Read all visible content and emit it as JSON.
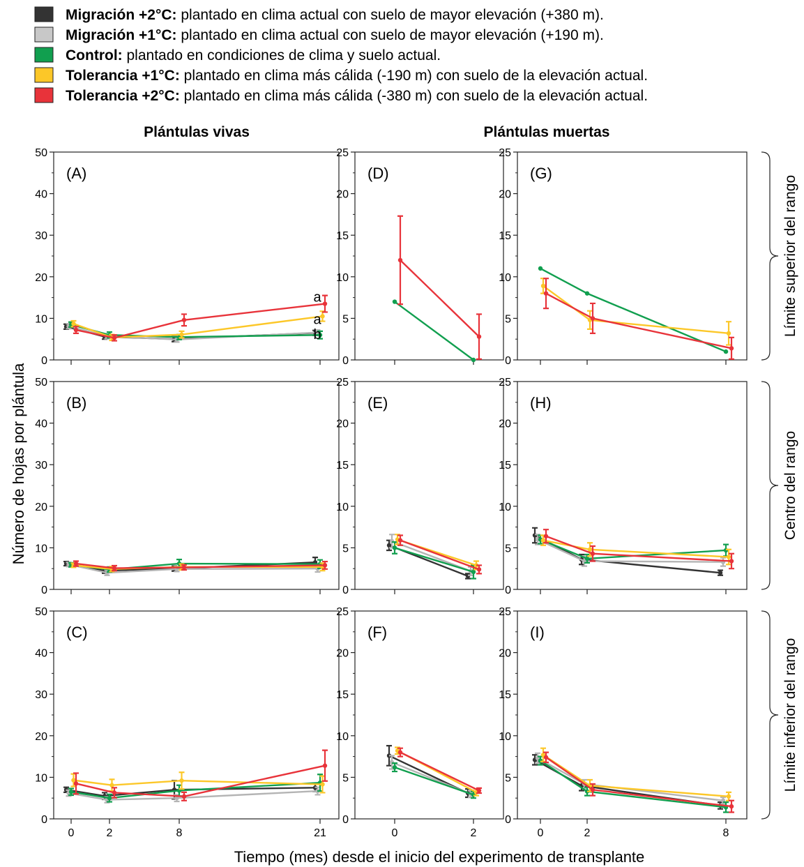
{
  "legend": {
    "items": [
      {
        "color": "#333333",
        "bold": "Migración +2°C:",
        "rest": " plantado en clima actual con suelo de mayor elevación (+380 m)."
      },
      {
        "color": "#c8c8c8",
        "bold": "Migración +1°C:",
        "rest": " plantado en clima actual con suelo de mayor elevación (+190 m)."
      },
      {
        "color": "#119f4f",
        "bold": "Control:",
        "rest": " plantado en condiciones de clima y suelo actual."
      },
      {
        "color": "#fcc728",
        "bold": "Tolerancia +1°C:",
        "rest": " plantado en clima más cálida (-190 m) con suelo de la elevación actual."
      },
      {
        "color": "#e8333a",
        "bold": "Tolerancia +2°C:",
        "rest": " plantado en clima más cálida (-380 m) con suelo de la elevación actual."
      }
    ]
  },
  "headers": {
    "live": "Plántulas vivas",
    "dead": "Plántulas muertas"
  },
  "ylabel": "Número  de  hojas  por  plántula",
  "xlabel": "Tiempo (mes) desde el inicio del experimento de transplante",
  "rows": [
    {
      "label": "Límite superior del rango"
    },
    {
      "label": "Centro del rango"
    },
    {
      "label": "Límite inferior del rango"
    }
  ],
  "series_colors": {
    "m2": "#333333",
    "m1": "#b4b4b4",
    "c": "#119f4f",
    "t1": "#fcc728",
    "t2": "#e8333a"
  },
  "chart_data": [
    {
      "panel": "(A)",
      "type": "line",
      "ymax": 50,
      "ystep": 10,
      "xticks": [
        0,
        2,
        8,
        21
      ],
      "annotations": [
        {
          "text": "a",
          "x": 21,
          "y": 15.2
        },
        {
          "text": "a",
          "x": 21,
          "y": 9.8
        },
        {
          "text": "b",
          "x": 21,
          "y": 6.2
        }
      ],
      "series": [
        {
          "key": "m2",
          "points": [
            [
              0,
              8.0,
              0.6
            ],
            [
              2,
              5.6,
              0.6
            ],
            [
              8,
              5.0,
              0.6
            ],
            [
              21,
              6.5,
              0.6
            ]
          ]
        },
        {
          "key": "m1",
          "points": [
            [
              0,
              8.1,
              0.6
            ],
            [
              2,
              5.7,
              0.6
            ],
            [
              8,
              4.9,
              0.6
            ],
            [
              21,
              6.6,
              0.6
            ]
          ]
        },
        {
          "key": "c",
          "points": [
            [
              0,
              8.5,
              0.6
            ],
            [
              2,
              6.0,
              0.7
            ],
            [
              8,
              5.5,
              0.6
            ],
            [
              21,
              6.0,
              0.9
            ]
          ]
        },
        {
          "key": "t1",
          "points": [
            [
              0,
              8.7,
              0.7
            ],
            [
              2,
              5.4,
              0.7
            ],
            [
              8,
              6.1,
              0.8
            ],
            [
              21,
              10.5,
              1.2
            ]
          ]
        },
        {
          "key": "t2",
          "points": [
            [
              0,
              7.2,
              0.8
            ],
            [
              2,
              5.3,
              0.7
            ],
            [
              8,
              9.6,
              1.4
            ],
            [
              21,
              13.5,
              2.0
            ]
          ]
        }
      ]
    },
    {
      "panel": "(D)",
      "type": "line",
      "ymax": 25,
      "ystep": 5,
      "xticks": [
        0,
        2
      ],
      "series": [
        {
          "key": "c",
          "points": [
            [
              0,
              7.0,
              0
            ],
            [
              2,
              0,
              0
            ]
          ]
        },
        {
          "key": "t2",
          "points": [
            [
              0,
              12.0,
              5.3
            ],
            [
              2,
              2.8,
              2.7
            ]
          ]
        }
      ]
    },
    {
      "panel": "(G)",
      "type": "line",
      "ymax": 25,
      "ystep": 5,
      "xticks": [
        0,
        2,
        8
      ],
      "series": [
        {
          "key": "c",
          "points": [
            [
              0,
              11.0,
              0
            ],
            [
              2,
              8.0,
              0
            ],
            [
              8,
              1.0,
              0
            ]
          ]
        },
        {
          "key": "t1",
          "points": [
            [
              0,
              8.9,
              0.9
            ],
            [
              2,
              4.8,
              1.1
            ],
            [
              8,
              3.2,
              1.4
            ]
          ]
        },
        {
          "key": "t2",
          "points": [
            [
              0,
              8.0,
              1.8
            ],
            [
              2,
              5.0,
              1.8
            ],
            [
              8,
              1.4,
              1.3
            ]
          ]
        }
      ]
    },
    {
      "panel": "(B)",
      "type": "line",
      "ymax": 50,
      "ystep": 10,
      "xticks": [
        0,
        2,
        8,
        21
      ],
      "series": [
        {
          "key": "m2",
          "points": [
            [
              0,
              6.2,
              0.5
            ],
            [
              2,
              4.5,
              0.6
            ],
            [
              8,
              5.0,
              0.6
            ],
            [
              21,
              6.5,
              1.2
            ]
          ]
        },
        {
          "key": "m1",
          "points": [
            [
              0,
              6.0,
              0.5
            ],
            [
              2,
              4.0,
              0.6
            ],
            [
              8,
              4.9,
              0.6
            ],
            [
              21,
              5.0,
              0.8
            ]
          ]
        },
        {
          "key": "c",
          "points": [
            [
              0,
              5.9,
              0.5
            ],
            [
              2,
              4.8,
              0.6
            ],
            [
              8,
              6.2,
              1.0
            ],
            [
              21,
              6.1,
              1.0
            ]
          ]
        },
        {
          "key": "t1",
          "points": [
            [
              0,
              5.8,
              0.5
            ],
            [
              2,
              4.9,
              0.6
            ],
            [
              8,
              5.4,
              0.7
            ],
            [
              21,
              5.4,
              0.9
            ]
          ]
        },
        {
          "key": "t2",
          "points": [
            [
              0,
              6.2,
              0.6
            ],
            [
              2,
              5.1,
              0.6
            ],
            [
              8,
              5.3,
              0.6
            ],
            [
              21,
              5.8,
              0.9
            ]
          ]
        }
      ]
    },
    {
      "panel": "(E)",
      "type": "line",
      "ymax": 25,
      "ystep": 5,
      "xticks": [
        0,
        2
      ],
      "series": [
        {
          "key": "m2",
          "points": [
            [
              0,
              5.3,
              0.6
            ],
            [
              2,
              1.6,
              0.3
            ]
          ]
        },
        {
          "key": "m1",
          "points": [
            [
              0,
              5.8,
              0.8
            ],
            [
              2,
              2.2,
              0.5
            ]
          ]
        },
        {
          "key": "c",
          "points": [
            [
              0,
              5.0,
              0.7
            ],
            [
              2,
              2.1,
              0.8
            ]
          ]
        },
        {
          "key": "t1",
          "points": [
            [
              0,
              6.0,
              0.6
            ],
            [
              2,
              2.9,
              0.5
            ]
          ]
        },
        {
          "key": "t2",
          "points": [
            [
              0,
              5.9,
              0.6
            ],
            [
              2,
              2.4,
              0.5
            ]
          ]
        }
      ]
    },
    {
      "panel": "(H)",
      "type": "line",
      "ymax": 25,
      "ystep": 5,
      "xticks": [
        0,
        2,
        8
      ],
      "series": [
        {
          "key": "m2",
          "points": [
            [
              0,
              6.5,
              0.9
            ],
            [
              2,
              3.6,
              0.6
            ],
            [
              8,
              2.0,
              0.3
            ]
          ]
        },
        {
          "key": "m1",
          "points": [
            [
              0,
              6.0,
              0.6
            ],
            [
              2,
              3.4,
              0.6
            ],
            [
              8,
              3.3,
              0.5
            ]
          ]
        },
        {
          "key": "c",
          "points": [
            [
              0,
              6.0,
              0.5
            ],
            [
              2,
              3.7,
              0.5
            ],
            [
              8,
              4.7,
              0.7
            ]
          ]
        },
        {
          "key": "t1",
          "points": [
            [
              0,
              5.9,
              0.6
            ],
            [
              2,
              4.8,
              0.8
            ],
            [
              8,
              3.9,
              0.9
            ]
          ]
        },
        {
          "key": "t2",
          "points": [
            [
              0,
              6.4,
              0.8
            ],
            [
              2,
              4.3,
              0.9
            ],
            [
              8,
              3.4,
              0.9
            ]
          ]
        }
      ]
    },
    {
      "panel": "(C)",
      "type": "line",
      "ymax": 50,
      "ystep": 10,
      "xticks": [
        0,
        2,
        8,
        21
      ],
      "series": [
        {
          "key": "m2",
          "points": [
            [
              0,
              7.0,
              0.6
            ],
            [
              2,
              5.5,
              0.8
            ],
            [
              8,
              7.0,
              2.2
            ],
            [
              21,
              7.5,
              0.9
            ]
          ]
        },
        {
          "key": "m1",
          "points": [
            [
              0,
              6.2,
              0.7
            ],
            [
              2,
              4.6,
              0.7
            ],
            [
              8,
              5.0,
              0.8
            ],
            [
              21,
              6.7,
              0.9
            ]
          ]
        },
        {
          "key": "c",
          "points": [
            [
              0,
              6.5,
              0.8
            ],
            [
              2,
              5.0,
              0.9
            ],
            [
              8,
              6.8,
              1.3
            ],
            [
              21,
              8.7,
              2.0
            ]
          ]
        },
        {
          "key": "t1",
          "points": [
            [
              0,
              9.3,
              1.5
            ],
            [
              2,
              8.1,
              1.4
            ],
            [
              8,
              9.2,
              2.0
            ],
            [
              21,
              8.3,
              2.0
            ]
          ]
        },
        {
          "key": "t2",
          "points": [
            [
              0,
              8.5,
              2.5
            ],
            [
              2,
              6.3,
              1.2
            ],
            [
              8,
              5.4,
              1.0
            ],
            [
              21,
              12.8,
              3.7
            ]
          ]
        }
      ]
    },
    {
      "panel": "(F)",
      "type": "line",
      "ymax": 25,
      "ystep": 5,
      "xticks": [
        0,
        2
      ],
      "series": [
        {
          "key": "m2",
          "points": [
            [
              0,
              7.6,
              1.2
            ],
            [
              2,
              3.1,
              0.5
            ]
          ]
        },
        {
          "key": "m1",
          "points": [
            [
              0,
              6.8,
              0.8
            ],
            [
              2,
              3.0,
              0.4
            ]
          ]
        },
        {
          "key": "c",
          "points": [
            [
              0,
              6.2,
              0.5
            ],
            [
              2,
              2.9,
              0.4
            ]
          ]
        },
        {
          "key": "t1",
          "points": [
            [
              0,
              8.2,
              0.4
            ],
            [
              2,
              3.2,
              0.4
            ]
          ]
        },
        {
          "key": "t2",
          "points": [
            [
              0,
              8.0,
              0.5
            ],
            [
              2,
              3.4,
              0.3
            ]
          ]
        }
      ]
    },
    {
      "panel": "(I)",
      "type": "line",
      "ymax": 25,
      "ystep": 5,
      "xticks": [
        0,
        2,
        8
      ],
      "series": [
        {
          "key": "m2",
          "points": [
            [
              0,
              7.1,
              0.6
            ],
            [
              2,
              4.0,
              0.6
            ],
            [
              8,
              1.6,
              0.4
            ]
          ]
        },
        {
          "key": "m1",
          "points": [
            [
              0,
              7.3,
              0.6
            ],
            [
              2,
              4.2,
              0.5
            ],
            [
              8,
              2.2,
              0.4
            ]
          ]
        },
        {
          "key": "c",
          "points": [
            [
              0,
              7.0,
              0.5
            ],
            [
              2,
              3.3,
              0.5
            ],
            [
              8,
              1.4,
              0.6
            ]
          ]
        },
        {
          "key": "t1",
          "points": [
            [
              0,
              7.7,
              0.8
            ],
            [
              2,
              4.0,
              0.7
            ],
            [
              8,
              2.7,
              0.5
            ]
          ]
        },
        {
          "key": "t2",
          "points": [
            [
              0,
              7.4,
              0.6
            ],
            [
              2,
              3.5,
              0.7
            ],
            [
              8,
              1.5,
              0.7
            ]
          ]
        }
      ]
    }
  ]
}
